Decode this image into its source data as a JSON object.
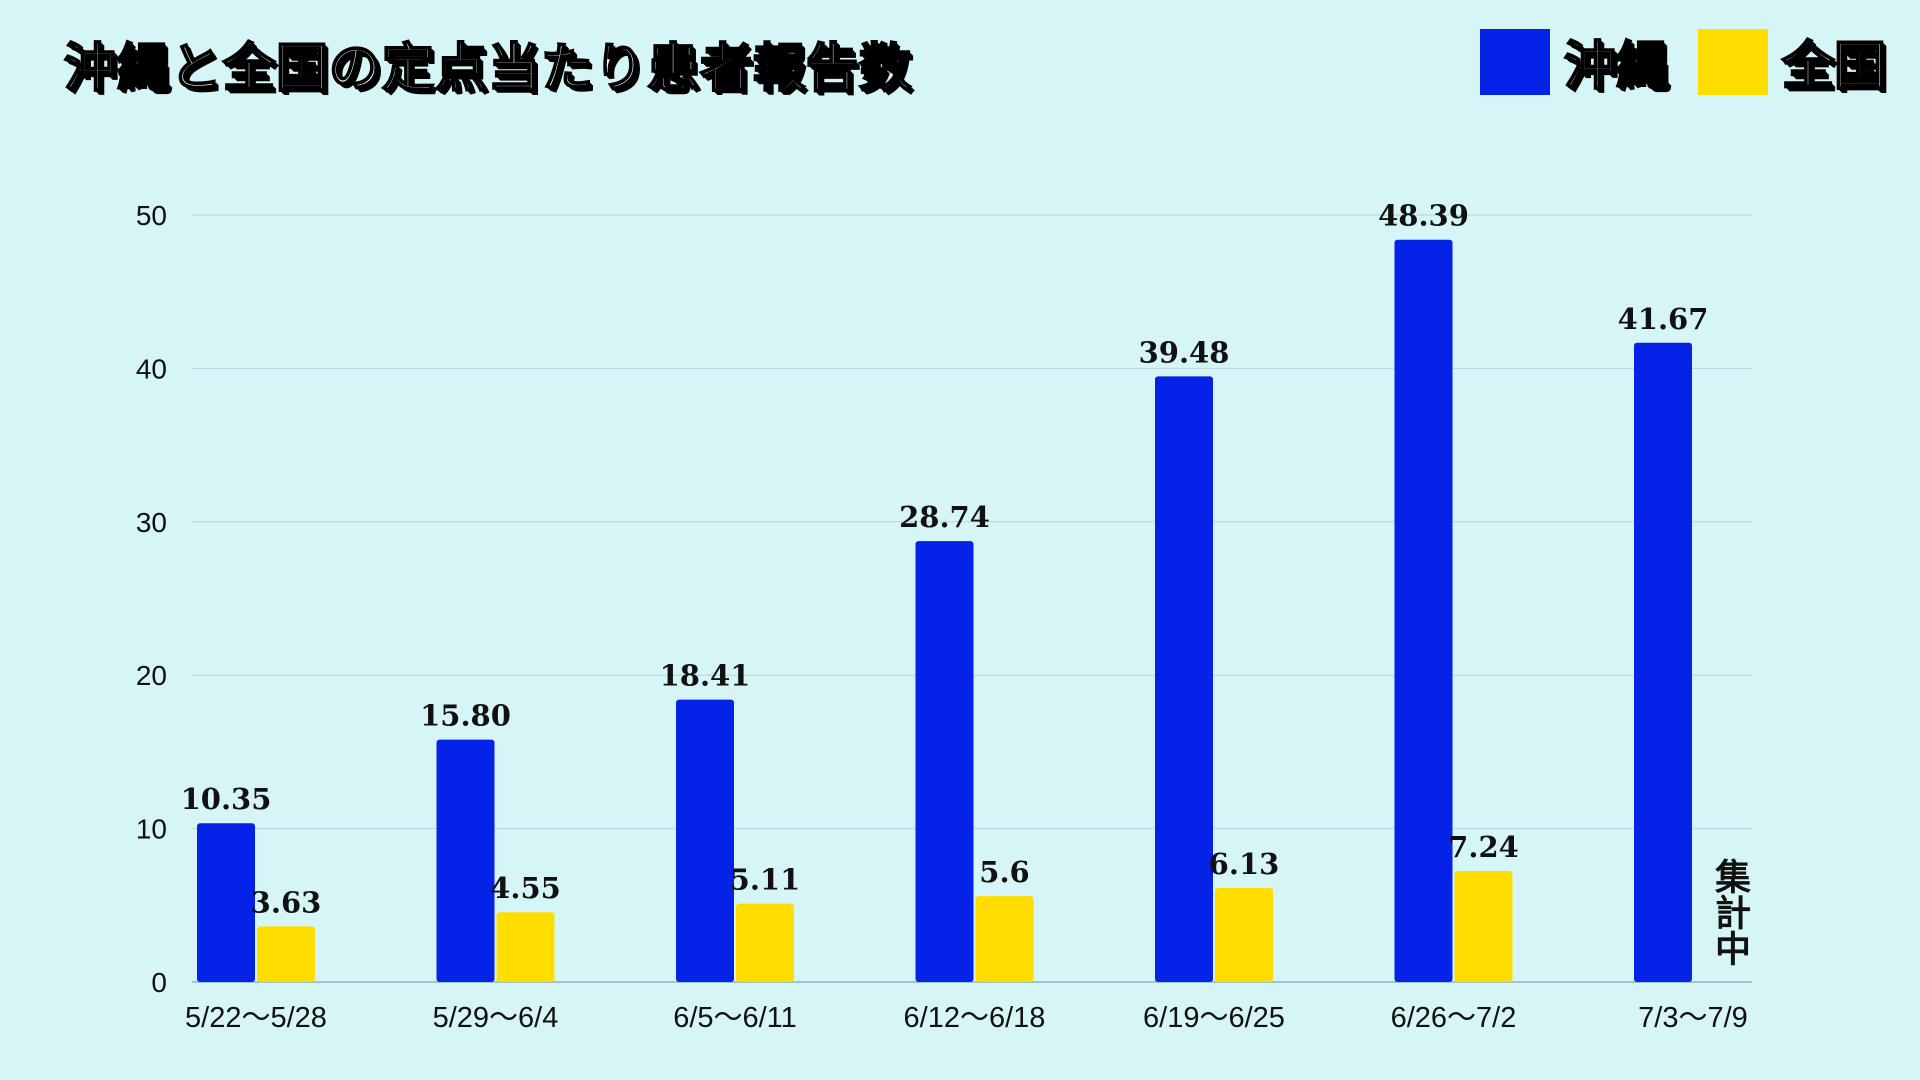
{
  "title": "沖縄と全国の定点当たり患者報告数",
  "legend": [
    {
      "label": "沖縄",
      "color": "#0523e6"
    },
    {
      "label": "全国",
      "color": "#ffdd00"
    }
  ],
  "note": "集計中",
  "chart_data": {
    "type": "bar",
    "title": "沖縄と全国の定点当たり患者報告数",
    "xlabel": "",
    "ylabel": "",
    "ylim": [
      0,
      50
    ],
    "yticks": [
      0,
      10,
      20,
      30,
      40,
      50
    ],
    "grid": true,
    "legend_position": "top-right",
    "categories": [
      "5/22〜5/28",
      "5/29〜6/4",
      "6/5〜6/11",
      "6/12〜6/18",
      "6/19〜6/25",
      "6/26〜7/2",
      "7/3〜7/9"
    ],
    "series": [
      {
        "name": "沖縄",
        "color": "#0523e6",
        "values": [
          10.35,
          15.8,
          18.41,
          28.74,
          39.48,
          48.39,
          41.67
        ],
        "labels": [
          "10.35",
          "15.80",
          "18.41",
          "28.74",
          "39.48",
          "48.39",
          "41.67"
        ]
      },
      {
        "name": "全国",
        "color": "#ffdd00",
        "values": [
          3.63,
          4.55,
          5.11,
          5.6,
          6.13,
          7.24,
          null
        ],
        "labels": [
          "3.63",
          "4.55",
          "5.11",
          "5.6",
          "6.13",
          "7.24",
          null
        ]
      }
    ]
  }
}
